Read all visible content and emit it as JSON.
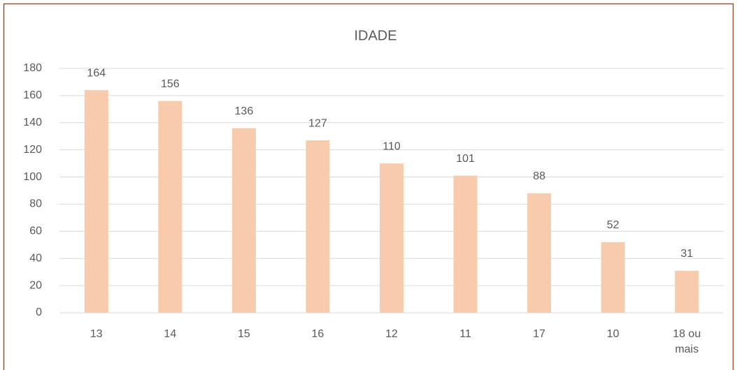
{
  "chart_data": {
    "type": "bar",
    "title": "IDADE",
    "categories": [
      "13",
      "14",
      "15",
      "16",
      "12",
      "11",
      "17",
      "10",
      "18 ou mais"
    ],
    "values": [
      164,
      156,
      136,
      127,
      110,
      101,
      88,
      52,
      31
    ],
    "color": "#f8cbad",
    "ylim": [
      0,
      180
    ],
    "yticks": [
      0,
      20,
      40,
      60,
      80,
      100,
      120,
      140,
      160,
      180
    ],
    "grid": true
  }
}
